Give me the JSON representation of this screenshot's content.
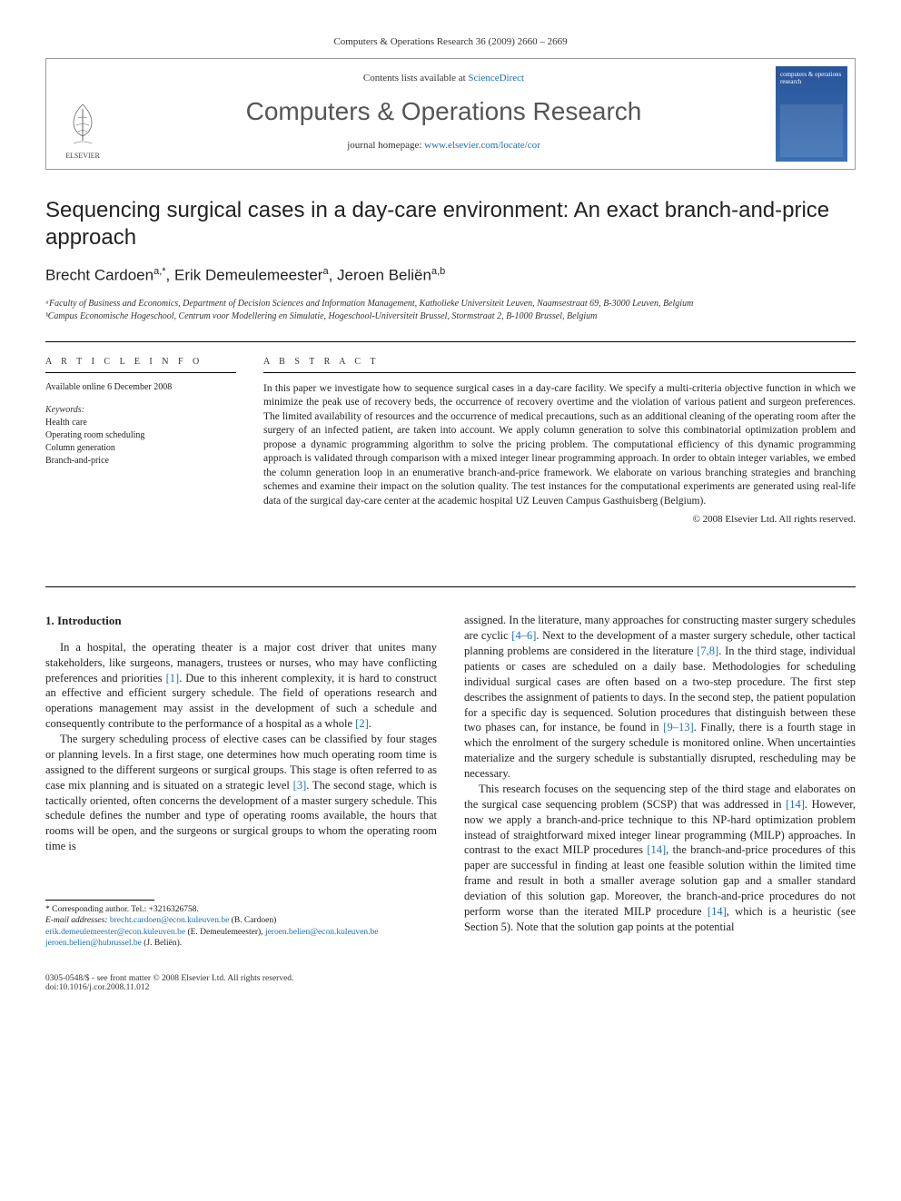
{
  "citation": "Computers & Operations Research 36 (2009) 2660 – 2669",
  "contents_prefix": "Contents lists available at ",
  "contents_link": "ScienceDirect",
  "journal_name": "Computers & Operations Research",
  "homepage_prefix": "journal homepage: ",
  "homepage_link": "www.elsevier.com/locate/cor",
  "publisher": "ELSEVIER",
  "cover_text": "computers & operations research",
  "title": "Sequencing surgical cases in a day-care environment: An exact branch-and-price approach",
  "authors_html": "Brecht Cardoen<sup>a,*</sup>, Erik Demeulemeester<sup>a</sup>, Jeroen Beliën<sup>a,b</sup>",
  "affiliations": [
    "ᵃFaculty of Business and Economics, Department of Decision Sciences and Information Management, Katholieke Universiteit Leuven, Naamsestraat 69, B-3000 Leuven, Belgium",
    "ᵇCampus Economische Hogeschool, Centrum voor Modellering en Simulatie, Hogeschool-Universiteit Brussel, Stormstraat 2, B-1000 Brussel, Belgium"
  ],
  "info_heading": "A R T I C L E   I N F O",
  "available_online": "Available online 6 December 2008",
  "keywords_label": "Keywords:",
  "keywords": [
    "Health care",
    "Operating room scheduling",
    "Column generation",
    "Branch-and-price"
  ],
  "abstract_heading": "A B S T R A C T",
  "abstract": "In this paper we investigate how to sequence surgical cases in a day-care facility. We specify a multi-criteria objective function in which we minimize the peak use of recovery beds, the occurrence of recovery overtime and the violation of various patient and surgeon preferences. The limited availability of resources and the occurrence of medical precautions, such as an additional cleaning of the operating room after the surgery of an infected patient, are taken into account. We apply column generation to solve this combinatorial optimization problem and propose a dynamic programming algorithm to solve the pricing problem. The computational efficiency of this dynamic programming approach is validated through comparison with a mixed integer linear programming approach. In order to obtain integer variables, we embed the column generation loop in an enumerative branch-and-price framework. We elaborate on various branching strategies and branching schemes and examine their impact on the solution quality. The test instances for the computational experiments are generated using real-life data of the surgical day-care center at the academic hospital UZ Leuven Campus Gasthuisberg (Belgium).",
  "copyright": "© 2008 Elsevier Ltd. All rights reserved.",
  "section_1_heading": "1. Introduction",
  "col1_p1": "In a hospital, the operating theater is a major cost driver that unites many stakeholders, like surgeons, managers, trustees or nurses, who may have conflicting preferences and priorities [1]. Due to this inherent complexity, it is hard to construct an effective and efficient surgery schedule. The field of operations research and operations management may assist in the development of such a schedule and consequently contribute to the performance of a hospital as a whole [2].",
  "col1_p2": "The surgery scheduling process of elective cases can be classified by four stages or planning levels. In a first stage, one determines how much operating room time is assigned to the different surgeons or surgical groups. This stage is often referred to as case mix planning and is situated on a strategic level [3]. The second stage, which is tactically oriented, often concerns the development of a master surgery schedule. This schedule defines the number and type of operating rooms available, the hours that rooms will be open, and the surgeons or surgical groups to whom the operating room time is",
  "col2_p1": "assigned. In the literature, many approaches for constructing master surgery schedules are cyclic [4–6]. Next to the development of a master surgery schedule, other tactical planning problems are considered in the literature [7,8]. In the third stage, individual patients or cases are scheduled on a daily base. Methodologies for scheduling individual surgical cases are often based on a two-step procedure. The first step describes the assignment of patients to days. In the second step, the patient population for a specific day is sequenced. Solution procedures that distinguish between these two phases can, for instance, be found in [9–13]. Finally, there is a fourth stage in which the enrolment of the surgery schedule is monitored online. When uncertainties materialize and the surgery schedule is substantially disrupted, rescheduling may be necessary.",
  "col2_p2": "This research focuses on the sequencing step of the third stage and elaborates on the surgical case sequencing problem (SCSP) that was addressed in [14]. However, now we apply a branch-and-price technique to this NP-hard optimization problem instead of straightforward mixed integer linear programming (MILP) approaches. In contrast to the exact MILP procedures [14], the branch-and-price procedures of this paper are successful in finding at least one feasible solution within the limited time frame and result in both a smaller average solution gap and a smaller standard deviation of this solution gap. Moreover, the branch-and-price procedures do not perform worse than the iterated MILP procedure [14], which is a heuristic (see Section 5). Note that the solution gap points at the potential",
  "corresponding": "* Corresponding author. Tel.: +3216326758.",
  "email_label": "E-mail addresses:",
  "emails": [
    {
      "addr": "brecht.cardoen@econ.kuleuven.be",
      "who": "(B. Cardoen)"
    },
    {
      "addr": "erik.demeulemeester@econ.kuleuven.be",
      "who": "(E. Demeulemeester)"
    },
    {
      "addr": "jeroen.belien@econ.kuleuven.be",
      "who": ""
    },
    {
      "addr": "jeroen.belien@hubrussel.be",
      "who": "(J. Beliën)."
    }
  ],
  "footer_left": "0305-0548/$ - see front matter © 2008 Elsevier Ltd. All rights reserved.",
  "doi": "doi:10.1016/j.cor.2008.11.012",
  "refs": {
    "r1": "[1]",
    "r2": "[2]",
    "r3": "[3]",
    "r46": "[4–6]",
    "r78": "[7,8]",
    "r913": "[9–13]",
    "r14": "[14]"
  },
  "colors": {
    "link": "#1a6fb5",
    "text": "#222",
    "border": "#999",
    "cover_bg": "#2a5599"
  }
}
